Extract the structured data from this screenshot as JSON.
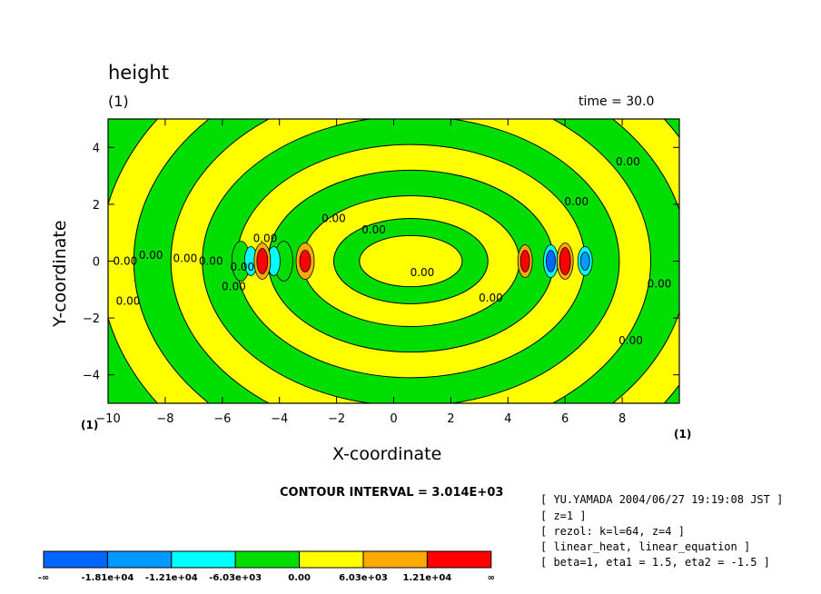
{
  "chart_data": {
    "type": "contour",
    "title": "height",
    "unit_top_left": "(1)",
    "time_label": "time = 30.0",
    "xlabel": "X-coordinate",
    "ylabel": "Y-coordinate",
    "x_unit_left": "(1)",
    "x_unit_right": "(1)",
    "xlim": [
      -10,
      10
    ],
    "ylim": [
      -5,
      5
    ],
    "x_ticks": [
      -10,
      -8,
      -6,
      -4,
      -2,
      0,
      2,
      4,
      6,
      8
    ],
    "y_ticks": [
      -4,
      -2,
      0,
      2,
      4
    ],
    "contour_interval_text": "CONTOUR INTERVAL = 3.014E+03",
    "contour_labels": [
      "0.00",
      "0.00",
      "0.00",
      "0.00",
      "0.00",
      "0.00",
      "0.00",
      "0.00",
      "0.00",
      "0.00",
      "0.00",
      "0.00",
      "0.00",
      "0.00",
      "0.00",
      "0.00"
    ],
    "colorbar": {
      "colors": [
        "#0066ff",
        "#0099ff",
        "#00ffff",
        "#00dd00",
        "#ffff00",
        "#ffaa00",
        "#ff0000"
      ],
      "labels": [
        "-∞",
        "-1.81e+04",
        "-1.21e+04",
        "-6.03e+03",
        "0.00",
        "6.03e+03",
        "1.21e+04",
        "∞"
      ]
    }
  },
  "info_lines": [
    "[ YU.YAMADA 2004/06/27 19:19:08 JST ]",
    "[ z=1 ]",
    "[ rezol: k=l=64, z=4 ]",
    "[ linear_heat, linear_equation ]",
    "[ beta=1, eta1 = 1.5, eta2 = -1.5 ]"
  ],
  "colors": {
    "positive": "#ffff00",
    "negative": "#00dd00"
  }
}
